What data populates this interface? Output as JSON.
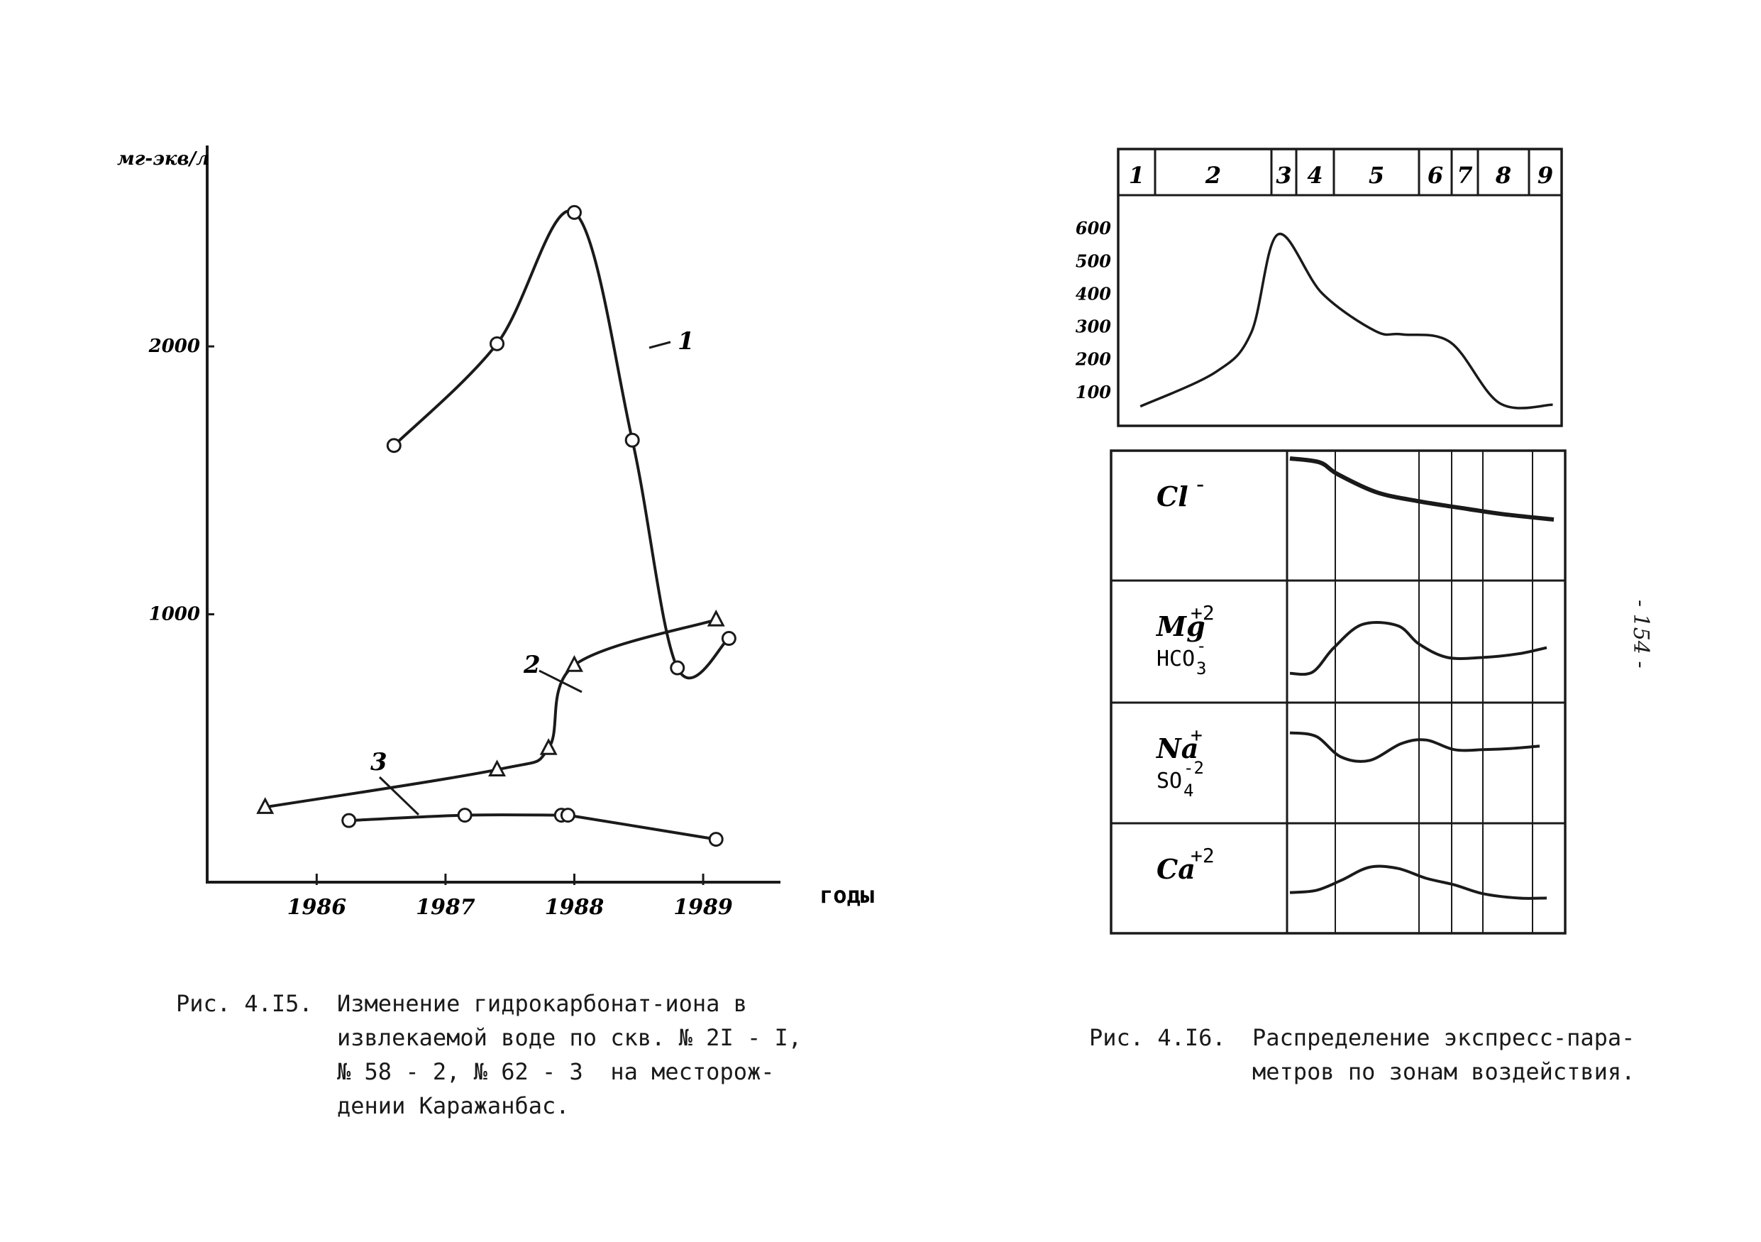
{
  "page": {
    "side_page_number": "- 154 -"
  },
  "chart_data": [
    {
      "type": "line",
      "ylabel": "мг-экв/л",
      "xlabel": "годы",
      "x_ticks": [
        1986,
        1987,
        1988,
        1989
      ],
      "y_ticks": [
        1000,
        2000
      ],
      "xlim": [
        1985.15,
        1989.6
      ],
      "ylim": [
        0,
        2750
      ],
      "series": [
        {
          "name": "1",
          "marker": "circle",
          "x": [
            1986.6,
            1987.4,
            1988.0,
            1988.45,
            1988.8,
            1989.2
          ],
          "y": [
            1630,
            2010,
            2500,
            1650,
            800,
            910
          ]
        },
        {
          "name": "2",
          "marker": "triangle",
          "x": [
            1985.6,
            1987.4,
            1987.8,
            1988.0,
            1989.1
          ],
          "y": [
            280,
            420,
            500,
            810,
            980
          ]
        },
        {
          "name": "3",
          "marker": "circle",
          "x": [
            1986.25,
            1987.15,
            1987.9,
            1987.95,
            1989.1
          ],
          "y": [
            230,
            250,
            250,
            250,
            160
          ]
        }
      ],
      "caption": {
        "label": "Рис. 4.I5.",
        "lines": [
          "Изменение гидрокарбонат-иона в",
          "извлекаемой воде по скв. № 2I - I,",
          "№ 58 - 2, № 62 - 3  на месторож-",
          "дении Каражанбас."
        ]
      }
    },
    {
      "type": "line",
      "zones": [
        "1",
        "2",
        "3",
        "4",
        "5",
        "6",
        "7",
        "8",
        "9"
      ],
      "y_ticks": [
        100,
        200,
        300,
        400,
        500,
        600
      ],
      "ylim": [
        0,
        700
      ],
      "series": [
        {
          "x": [
            0.05,
            0.22,
            0.3,
            0.36,
            0.46,
            0.58,
            0.64,
            0.75,
            0.86,
            0.98
          ],
          "y": [
            55,
            160,
            280,
            580,
            400,
            285,
            275,
            250,
            65,
            60
          ]
        }
      ],
      "panels": [
        {
          "label": "Cl",
          "ion_sign": "-"
        },
        {
          "label": "Mg",
          "sup": "+2",
          "label2": "HCO",
          "sub2": "3",
          "sup2": "-"
        },
        {
          "label": "Na",
          "sup": "+",
          "label2": "SO",
          "sub2": "4",
          "sup2": "-2"
        },
        {
          "label": "Ca",
          "sup": "+2"
        }
      ],
      "caption": {
        "label": "Рис. 4.I6.",
        "lines": [
          "Распределение экспресс-пара-",
          "метров по зонам воздействия."
        ]
      }
    }
  ]
}
